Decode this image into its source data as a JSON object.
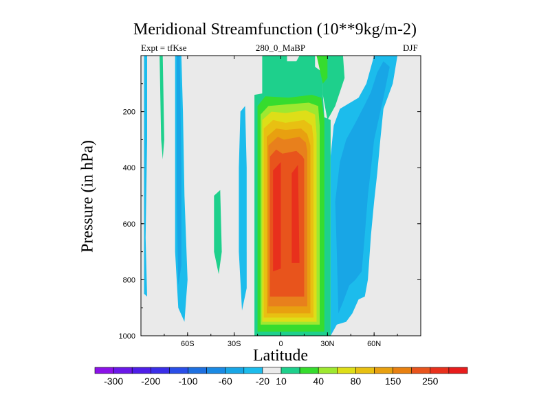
{
  "chart_data": {
    "type": "heatmap",
    "title": "Meridional Streamfunction (10**9kg/m-2)",
    "subtitle_left": "Expt = tfKse",
    "subtitle_center": "280_0_MaBP",
    "subtitle_right": "DJF",
    "xlabel": "Latitude",
    "ylabel": "Pressure (in hPa)",
    "xlim": [
      -90,
      90
    ],
    "ylim": [
      1000,
      0
    ],
    "x_ticks": [
      {
        "value": -60,
        "label": "60S"
      },
      {
        "value": -30,
        "label": "30S"
      },
      {
        "value": 0,
        "label": "0"
      },
      {
        "value": 30,
        "label": "30N"
      },
      {
        "value": 60,
        "label": "60N"
      }
    ],
    "y_ticks": [
      200,
      400,
      600,
      800,
      1000
    ],
    "colorbar": {
      "colors": [
        "#8b12e8",
        "#6a18e8",
        "#4e1ee8",
        "#3a2ee8",
        "#2a4ee8",
        "#1e70e0",
        "#1a8ae4",
        "#18a6e6",
        "#1cbcec",
        "#eaeaea",
        "#1ed08c",
        "#36dc2e",
        "#9ee830",
        "#dede18",
        "#e8c012",
        "#e8a010",
        "#e88010",
        "#e8541c",
        "#e8301c",
        "#e81c1c"
      ],
      "labels": [
        {
          "index": 1,
          "text": "-300"
        },
        {
          "index": 3,
          "text": "-200"
        },
        {
          "index": 5,
          "text": "-100"
        },
        {
          "index": 7,
          "text": "-60"
        },
        {
          "index": 9,
          "text": "-20"
        },
        {
          "index": 10,
          "text": "10"
        },
        {
          "index": 12,
          "text": "40"
        },
        {
          "index": 14,
          "text": "80"
        },
        {
          "index": 16,
          "text": "150"
        },
        {
          "index": 18,
          "text": "250"
        }
      ]
    },
    "background_value": 0,
    "regions": [
      {
        "name": "central-cell",
        "level": 10,
        "points": [
          [
            -17,
            1000
          ],
          [
            -17,
            140
          ],
          [
            -12,
            135
          ],
          [
            -12,
            0
          ],
          [
            4,
            0
          ],
          [
            4,
            20
          ],
          [
            10,
            20
          ],
          [
            12,
            0
          ],
          [
            22,
            0
          ],
          [
            22,
            40
          ],
          [
            27,
            60
          ],
          [
            27,
            140
          ],
          [
            28,
            220
          ],
          [
            32,
            230
          ],
          [
            32,
            1000
          ]
        ]
      },
      {
        "name": "central-cell",
        "level": 40,
        "points": [
          [
            -15,
            985
          ],
          [
            -15,
            180
          ],
          [
            -10,
            145
          ],
          [
            5,
            150
          ],
          [
            20,
            140
          ],
          [
            26,
            150
          ],
          [
            28,
            230
          ],
          [
            28,
            985
          ]
        ]
      },
      {
        "name": "central-cell",
        "level": 80,
        "points": [
          [
            -13,
            960
          ],
          [
            -13,
            210
          ],
          [
            -8,
            180
          ],
          [
            2,
            175
          ],
          [
            18,
            168
          ],
          [
            24,
            180
          ],
          [
            25,
            250
          ],
          [
            25,
            960
          ]
        ]
      },
      {
        "name": "central-cell",
        "level": 100,
        "points": [
          [
            -12,
            950
          ],
          [
            -12,
            230
          ],
          [
            -6,
            200
          ],
          [
            3,
            205
          ],
          [
            16,
            195
          ],
          [
            22,
            210
          ],
          [
            23,
            280
          ],
          [
            23,
            950
          ]
        ]
      },
      {
        "name": "central-cell",
        "level": 150,
        "points": [
          [
            -11,
            935
          ],
          [
            -11,
            260
          ],
          [
            -5,
            230
          ],
          [
            3,
            240
          ],
          [
            15,
            230
          ],
          [
            20,
            250
          ],
          [
            21,
            300
          ],
          [
            21,
            935
          ]
        ]
      },
      {
        "name": "central-cell",
        "level": 200,
        "points": [
          [
            -9,
            920
          ],
          [
            -9,
            290
          ],
          [
            -3,
            260
          ],
          [
            3,
            265
          ],
          [
            13,
            260
          ],
          [
            17,
            280
          ],
          [
            19,
            320
          ],
          [
            19,
            920
          ]
        ]
      },
      {
        "name": "central-cell",
        "level": 250,
        "points": [
          [
            -8,
            895
          ],
          [
            -8,
            320
          ],
          [
            -2,
            290
          ],
          [
            2,
            300
          ],
          [
            12,
            290
          ],
          [
            16,
            310
          ],
          [
            17,
            340
          ],
          [
            17,
            895
          ]
        ]
      },
      {
        "name": "central-cell",
        "level": 300,
        "points": [
          [
            -7,
            860
          ],
          [
            -7,
            360
          ],
          [
            -3,
            335
          ],
          [
            1,
            350
          ],
          [
            10,
            340
          ],
          [
            14,
            360
          ],
          [
            15,
            370
          ],
          [
            15,
            860
          ]
        ]
      },
      {
        "name": "central-cell",
        "level": 350,
        "points": [
          [
            -5,
            770
          ],
          [
            -5,
            410
          ],
          [
            0,
            380
          ],
          [
            0,
            760
          ]
        ]
      },
      {
        "name": "central-cell",
        "level": 350,
        "points": [
          [
            7,
            740
          ],
          [
            7,
            420
          ],
          [
            11,
            390
          ],
          [
            12,
            740
          ]
        ]
      },
      {
        "name": "north-neg-cell",
        "level": -20,
        "points": [
          [
            32,
            1000
          ],
          [
            32,
            360
          ],
          [
            34,
            250
          ],
          [
            38,
            190
          ],
          [
            50,
            150
          ],
          [
            55,
            100
          ],
          [
            60,
            0
          ],
          [
            75,
            0
          ],
          [
            72,
            100
          ],
          [
            66,
            190
          ],
          [
            64,
            300
          ],
          [
            62,
            420
          ],
          [
            60,
            520
          ],
          [
            58,
            640
          ],
          [
            56,
            800
          ],
          [
            54,
            860
          ],
          [
            50,
            870
          ],
          [
            46,
            920
          ],
          [
            42,
            950
          ],
          [
            36,
            960
          ]
        ]
      },
      {
        "name": "north-neg-cell",
        "level": -40,
        "points": [
          [
            37,
            920
          ],
          [
            36,
            700
          ],
          [
            35,
            520
          ],
          [
            38,
            380
          ],
          [
            42,
            300
          ],
          [
            48,
            240
          ],
          [
            54,
            175
          ],
          [
            58,
            130
          ],
          [
            62,
            60
          ],
          [
            66,
            20
          ],
          [
            70,
            40
          ],
          [
            66,
            150
          ],
          [
            60,
            300
          ],
          [
            56,
            500
          ],
          [
            54,
            640
          ],
          [
            52,
            770
          ],
          [
            48,
            800
          ],
          [
            44,
            820
          ],
          [
            40,
            880
          ]
        ]
      },
      {
        "name": "north-pos-band",
        "level": 10,
        "points": [
          [
            23,
            0
          ],
          [
            40,
            0
          ],
          [
            41,
            80
          ],
          [
            35,
            180
          ],
          [
            30,
            230
          ],
          [
            27,
            140
          ],
          [
            27,
            60
          ]
        ]
      },
      {
        "name": "north-pos-band",
        "level": 40,
        "points": [
          [
            23,
            0
          ],
          [
            30,
            0
          ],
          [
            30,
            80
          ],
          [
            27,
            100
          ]
        ]
      },
      {
        "name": "south-neg-band",
        "level": -20,
        "points": [
          [
            -88,
            0
          ],
          [
            -86,
            0
          ],
          [
            -86,
            300
          ],
          [
            -87,
            650
          ],
          [
            -86,
            860
          ],
          [
            -88,
            850
          ]
        ]
      },
      {
        "name": "south-neg-band",
        "level": -20,
        "points": [
          [
            -68,
            0
          ],
          [
            -64,
            0
          ],
          [
            -63,
            200
          ],
          [
            -62,
            500
          ],
          [
            -60,
            800
          ],
          [
            -62,
            950
          ],
          [
            -66,
            900
          ],
          [
            -68,
            700
          ]
        ]
      },
      {
        "name": "south-neg-band",
        "level": -40,
        "points": [
          [
            -67,
            0
          ],
          [
            -65,
            0
          ],
          [
            -64,
            400
          ],
          [
            -64,
            750
          ],
          [
            -66,
            820
          ],
          [
            -67,
            500
          ]
        ]
      },
      {
        "name": "south-neg-band",
        "level": -20,
        "points": [
          [
            -27,
            400
          ],
          [
            -26,
            200
          ],
          [
            -23,
            180
          ],
          [
            -22,
            400
          ],
          [
            -22,
            830
          ],
          [
            -25,
            910
          ],
          [
            -27,
            700
          ]
        ]
      },
      {
        "name": "south-pos-band",
        "level": 10,
        "points": [
          [
            -78,
            0
          ],
          [
            -76,
            0
          ],
          [
            -75,
            300
          ],
          [
            -76,
            370
          ],
          [
            -77,
            300
          ]
        ]
      },
      {
        "name": "south-pos-band",
        "level": 10,
        "points": [
          [
            -43,
            500
          ],
          [
            -39,
            480
          ],
          [
            -38,
            700
          ],
          [
            -40,
            780
          ],
          [
            -43,
            700
          ]
        ]
      }
    ]
  }
}
